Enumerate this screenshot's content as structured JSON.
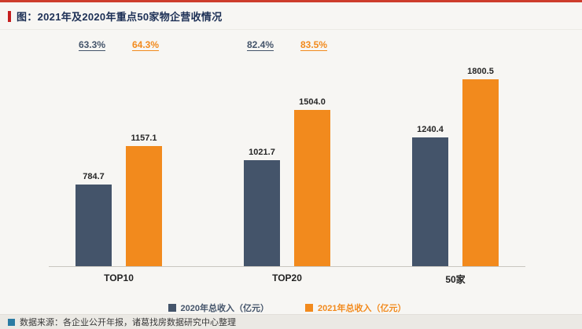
{
  "page": {
    "title": "图：2021年及2020年重点50家物企营收情况",
    "footer": "数据来源：各企业公开年报，诸葛找房数据研究中心整理"
  },
  "colors": {
    "accent_red": "#C51F1F",
    "series_2020": "#44546A",
    "series_2021": "#F28A1D",
    "source_icon": "#2B7BA3"
  },
  "chart_data": {
    "type": "bar",
    "title": "2021年及2020年重点50家物企营收情况",
    "categories": [
      "TOP10",
      "TOP20",
      "50家"
    ],
    "series": [
      {
        "name": "2020年总收入（亿元）",
        "color": "#44546A",
        "values": [
          784.7,
          1021.7,
          1240.4
        ]
      },
      {
        "name": "2021年总收入（亿元）",
        "color": "#F28A1D",
        "values": [
          1157.1,
          1504.0,
          1800.5
        ]
      }
    ],
    "growth": [
      [
        "63.3%",
        "82.4%",
        ""
      ],
      [
        "64.3%",
        "83.5%",
        ""
      ]
    ],
    "xlabel": "",
    "ylabel": "",
    "ylim": [
      0,
      1900
    ],
    "grid": false,
    "legend_position": "bottom",
    "value_labels": true
  }
}
